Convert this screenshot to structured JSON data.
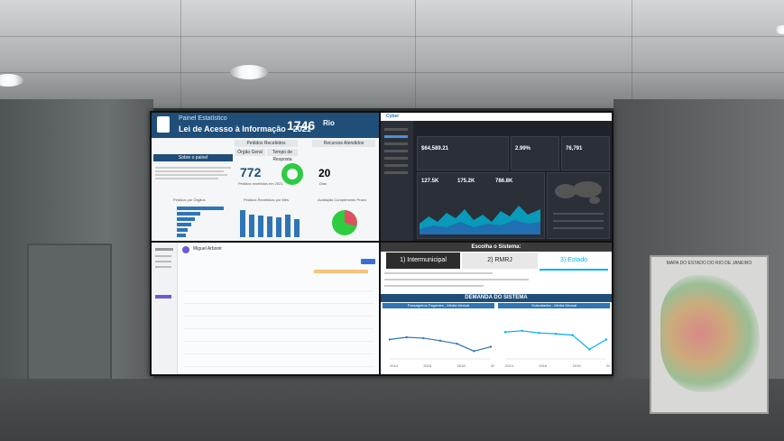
{
  "panel1": {
    "header_line1": "Painel Estatístico",
    "header_line2": "Lei de Acesso à Informação - 2021",
    "headline_number": "1746",
    "logo_text": "Rio",
    "tabs": [
      "Pedidos Recebidos",
      "Recursos Atendidos"
    ],
    "sub_tabs": [
      "Órgão Geral",
      "Tempo de Resposta"
    ],
    "section_button": "Sobre o painel",
    "kpi_main": "772",
    "kpi_main_caption": "Pedidos recebidos em 2021",
    "kpi_secondary": "20",
    "kpi_secondary_caption": "Dias",
    "section_orgaos": "Pedidos por Órgãos",
    "section_monthly": "Pedidos Recebidos por Mês",
    "section_avaliacao": "Avaliação Cumprimento Prazo"
  },
  "panel2": {
    "brand": "Cyber",
    "kpi1_value": "$64,589.21",
    "kpi2_value": "2.99%",
    "kpi3_value": "76,791",
    "kpi4_value": "127.5K",
    "kpi5_value": "175.2K",
    "kpi6_value": "786.8K"
  },
  "panel3": {
    "title": "Miguel Arbonir",
    "rows": [
      "row1",
      "row2",
      "row3",
      "row4",
      "row5",
      "row6",
      "row7",
      "row8"
    ]
  },
  "panel4": {
    "header": "Escolha o Sistema:",
    "button1": "1) Intermunicipal",
    "button2": "2) RMRJ",
    "button3": "3) Estado",
    "demand_header": "DEMANDA DO SISTEMA",
    "sub_left": "Passageiros Pagantes - Média Mensal",
    "sub_right": "Gratuidades - Média Mensal",
    "left_series": [
      0.45,
      0.5,
      0.48,
      0.42,
      0.35,
      0.18,
      0.28
    ],
    "right_series": [
      0.62,
      0.65,
      0.6,
      0.58,
      0.55,
      0.22,
      0.45
    ],
    "x_labels": [
      "2014",
      "2016",
      "2018",
      "2020"
    ],
    "colors": {
      "accent": "#2e75b6",
      "active": "#00b0f0"
    }
  },
  "wall_poster": {
    "title": "MAPA DO ESTADO DO RIO DE JANEIRO"
  }
}
